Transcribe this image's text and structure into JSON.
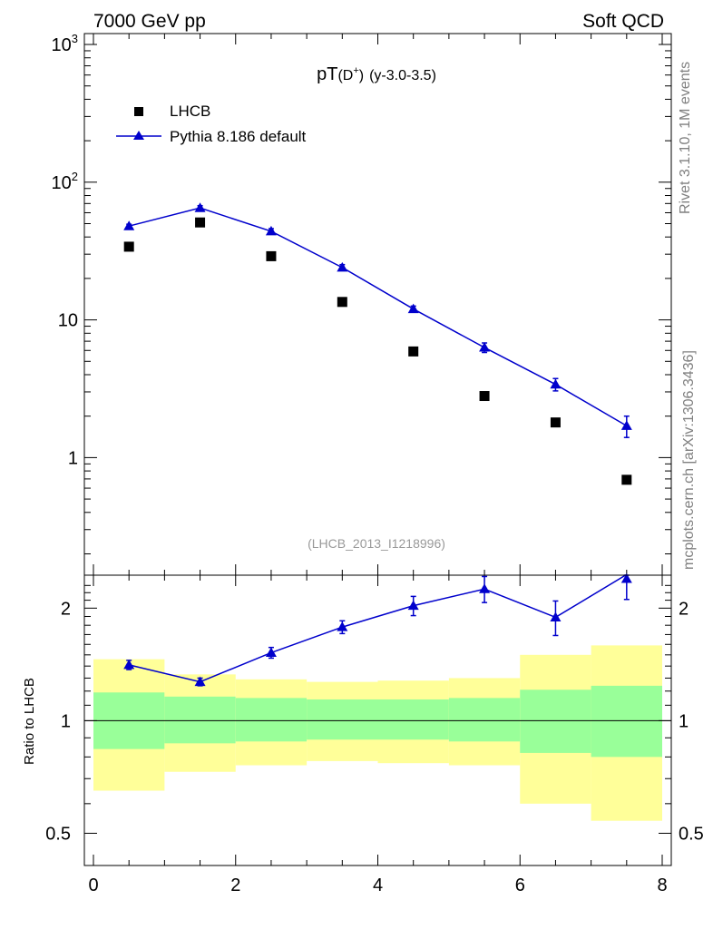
{
  "header": {
    "left": "7000 GeV pp",
    "right": "Soft QCD"
  },
  "side_labels": {
    "top": "Rivet 3.1.10,  1M events",
    "bottom": "mcplots.cern.ch [arXiv:1306.3436]"
  },
  "chart_data": {
    "type": "scatter",
    "title_main": "pT",
    "title_particle": "(D",
    "title_sup": "+",
    "title_close": ")",
    "title_range": "(y-3.0-3.5)",
    "analysis_tag": "(LHCB_2013_I1218996)",
    "xlim": [
      0,
      8
    ],
    "x_ticks": [
      "0",
      "2",
      "4",
      "6",
      "8"
    ],
    "x": [
      0.5,
      1.5,
      2.5,
      3.5,
      4.5,
      5.5,
      6.5,
      7.5
    ],
    "bin_edges": [
      0,
      1,
      2,
      3,
      4,
      5,
      6,
      7,
      8
    ],
    "main_panel": {
      "yscale": "log",
      "ylim": [
        0.14,
        1200
      ],
      "y_ticks": [
        {
          "value": 1000,
          "base": "10",
          "exp": "3"
        },
        {
          "value": 100,
          "base": "10",
          "exp": "2"
        },
        {
          "value": 10,
          "base": "10",
          "exp": ""
        },
        {
          "value": 1,
          "base": "1",
          "exp": ""
        }
      ],
      "legend": [
        {
          "label": "LHCB",
          "marker": "square",
          "color": "#000000"
        },
        {
          "label": "Pythia 8.186 default",
          "marker": "triangle",
          "color": "#0000cc"
        }
      ],
      "series": [
        {
          "name": "LHCB",
          "values": [
            34,
            51,
            29,
            13.5,
            5.9,
            2.8,
            1.8,
            0.69
          ]
        },
        {
          "name": "Pythia 8.186 default",
          "values": [
            48,
            65,
            44,
            24,
            12,
            6.3,
            3.4,
            1.7
          ],
          "err": [
            1.5,
            2.5,
            2,
            1.2,
            0.6,
            0.5,
            0.35,
            0.3
          ]
        }
      ]
    },
    "ratio_panel": {
      "ylabel": "Ratio to LHCB",
      "yscale": "log",
      "ylim": [
        0.41,
        2.45
      ],
      "y_ticks": [
        {
          "value": 0.5,
          "label": "0.5"
        },
        {
          "value": 1,
          "label": "1"
        },
        {
          "value": 2,
          "label": "2"
        }
      ],
      "ratio": [
        1.41,
        1.27,
        1.52,
        1.78,
        2.03,
        2.25,
        1.89,
        2.46
      ],
      "ratio_err": [
        0.04,
        0.03,
        0.05,
        0.07,
        0.12,
        0.18,
        0.2,
        0.35
      ],
      "band_green_lo": [
        0.84,
        0.87,
        0.88,
        0.89,
        0.89,
        0.88,
        0.82,
        0.8
      ],
      "band_green_hi": [
        1.19,
        1.16,
        1.15,
        1.14,
        1.14,
        1.15,
        1.21,
        1.24
      ],
      "band_yellow_lo": [
        0.65,
        0.73,
        0.76,
        0.78,
        0.77,
        0.76,
        0.6,
        0.54
      ],
      "band_yellow_hi": [
        1.46,
        1.33,
        1.29,
        1.27,
        1.28,
        1.3,
        1.5,
        1.59
      ],
      "colors": {
        "green": "#99ff99",
        "yellow": "#ffff99",
        "line": "#0000cc"
      }
    }
  }
}
